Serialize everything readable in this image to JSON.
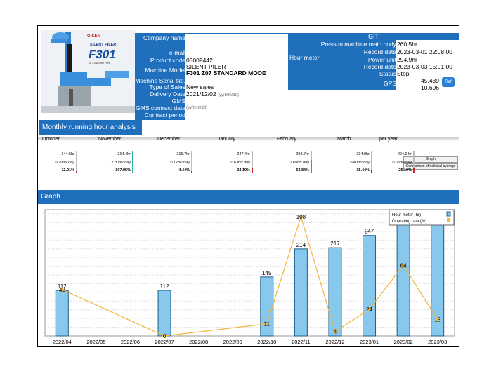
{
  "machine_image": {
    "brand": "GIKEN",
    "product_line": "SILENT PILER",
    "model_logo": "F301",
    "caption": "for 1.0 & Steel Piles"
  },
  "info": {
    "fields": [
      {
        "label": "Company name",
        "value": ""
      },
      {
        "label": "e-mail",
        "value": ""
      },
      {
        "label": "Product code",
        "value": "03009442"
      },
      {
        "label": "Machine Model",
        "value": "SILENT PILER",
        "value2": "F301 Z07 STANDARD MODE"
      },
      {
        "label": "Machine Serial No.",
        "value": ""
      },
      {
        "label": "Type of Sales",
        "value": "New sales"
      },
      {
        "label": "Delivery Date",
        "value": "2021/12/02",
        "hint": "(yy/mm/dd)"
      },
      {
        "label": "GMS",
        "value": ""
      },
      {
        "label": "GMS contract date",
        "value": "",
        "hint": "(yy/mm/dd)"
      },
      {
        "label": "Contract period",
        "value": ""
      }
    ]
  },
  "git": {
    "title": "GIT",
    "hour_meter_label": "Hour meter",
    "rows": [
      {
        "label": "Press-in machine main body",
        "value": "260.5hr"
      },
      {
        "label": "Record date",
        "value": "2023-03-01 22:08:00"
      },
      {
        "label": "Power unit",
        "value": "294.9hr"
      },
      {
        "label": "Record date",
        "value": "2023-03-03 15:01:00"
      },
      {
        "label": "Status",
        "value": "Stop"
      }
    ],
    "gps_label": "GPS",
    "gps_lat": "45.439",
    "gps_lon": "10.696",
    "gps_button": "Ref"
  },
  "monthly": {
    "title": "Monthly running hour analysis",
    "months": [
      {
        "name": "October",
        "hours": "144.5hr",
        "per_day": "0.29hr/ day",
        "rate": "11.01%"
      },
      {
        "name": "November",
        "hours": "214.4hr",
        "per_day": "2.80hr/ day",
        "rate": "107.95%"
      },
      {
        "name": "December",
        "hours": "216.7hr",
        "per_day": "0.12hr/ day",
        "rate": "4.44%"
      },
      {
        "name": "January",
        "hours": "247.4hr",
        "per_day": "0.63hr/ day",
        "rate": "24.19%"
      },
      {
        "name": "February",
        "hours": "293.7hr",
        "per_day": "1.65hr/ day",
        "rate": "63.84%"
      },
      {
        "name": "March",
        "hours": "294.9hr",
        "per_day": "0.40hr/ day",
        "rate": "15.44%"
      },
      {
        "name": "per year",
        "hours": "294.9 hr",
        "per_day": "0.65hr/ day",
        "rate": "25.10%"
      }
    ],
    "graph_button": "Graph",
    "compare_button": "Comparison of national average"
  },
  "graph": {
    "title": "Graph"
  },
  "colors": {
    "header_blue": "#1f6fbd",
    "bar_fill": "#87c8ec",
    "bar_stroke": "#1b5f8c",
    "line": "#f2b43c",
    "gauge_red": "#cc2222",
    "gauge_teal": "#2fb3a8",
    "gauge_green": "#22bb44"
  },
  "chart_data": {
    "type": "bar",
    "categories": [
      "2022/04",
      "2022/05",
      "2022/06",
      "2022/07",
      "2022/08",
      "2022/09",
      "2022/10",
      "2022/11",
      "2022/12",
      "2023/01",
      "2023/02",
      "2023/03"
    ],
    "series": [
      {
        "name": "Hour meter (hr)",
        "type": "bar",
        "values": [
          112,
          null,
          null,
          112,
          null,
          null,
          145,
          214,
          217,
          247,
          294,
          295
        ]
      },
      {
        "name": "Operating rate (%)",
        "type": "line",
        "values": [
          42,
          null,
          null,
          0,
          null,
          null,
          11,
          108,
          4,
          24,
          64,
          15
        ]
      }
    ],
    "legend_position": "top-right",
    "grid": true
  }
}
